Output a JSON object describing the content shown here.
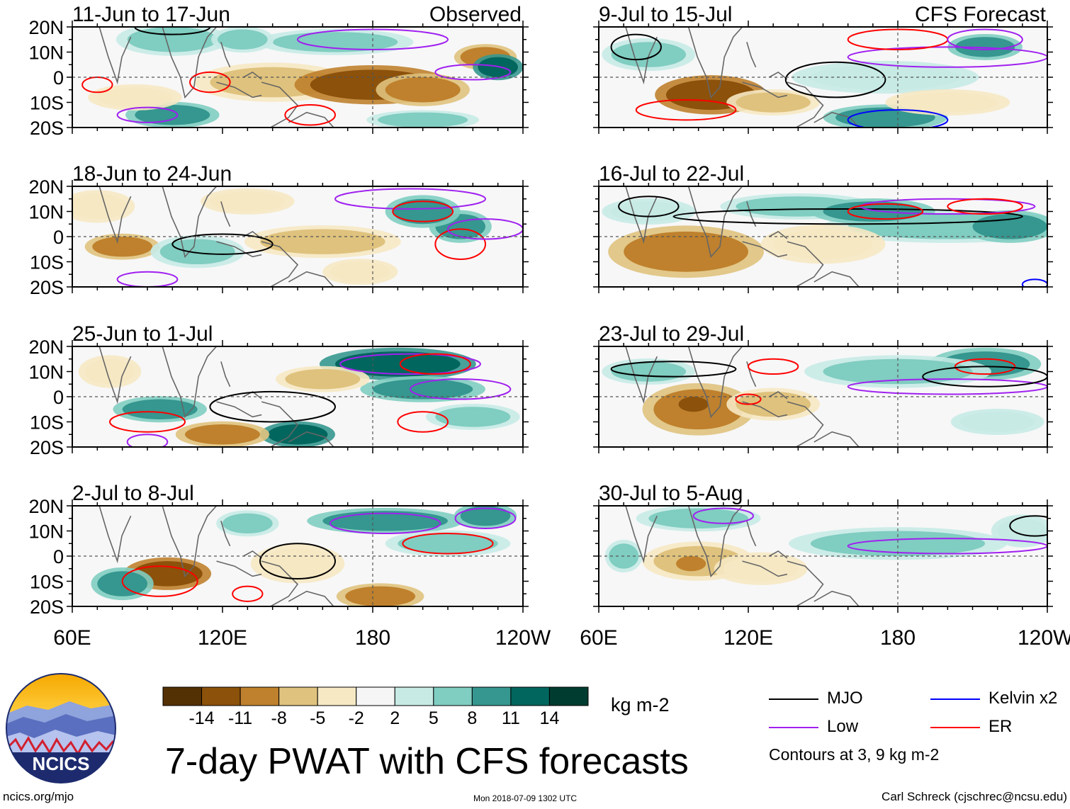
{
  "chart_data": {
    "type": "heatmap",
    "title": "7-day PWAT with CFS forecasts",
    "variable": "7-day precipitable water (PWAT) anomaly",
    "units": "kg m-2",
    "observed_label": "Observed",
    "forecast_label": "CFS Forecast",
    "lat_ticks": [
      "20N",
      "10N",
      "0",
      "10S",
      "20S"
    ],
    "lon_ticks": [
      "60E",
      "120E",
      "180",
      "120W"
    ],
    "lat_range": [
      -20,
      20
    ],
    "lon_range_deg_east": [
      60,
      240
    ],
    "panels_observed": [
      {
        "title": "11-Jun to 17-Jun"
      },
      {
        "title": "18-Jun to 24-Jun"
      },
      {
        "title": "25-Jun to 1-Jul"
      },
      {
        "title": "2-Jul to 8-Jul"
      }
    ],
    "panels_forecast": [
      {
        "title": "9-Jul to 15-Jul"
      },
      {
        "title": "16-Jul to 22-Jul"
      },
      {
        "title": "23-Jul to 29-Jul"
      },
      {
        "title": "30-Jul to 5-Aug"
      }
    ],
    "colorbar": {
      "ticks": [
        "-14",
        "-11",
        "-8",
        "-5",
        "-2",
        "2",
        "5",
        "8",
        "11",
        "14"
      ],
      "colors": [
        "#543005",
        "#8c510a",
        "#bf812d",
        "#dfc27d",
        "#f6e8c3",
        "#f5f5f5",
        "#c7eae5",
        "#80cdc1",
        "#35978f",
        "#01665e",
        "#003c30"
      ]
    },
    "contour_legend": [
      {
        "label": "MJO",
        "color": "#000000"
      },
      {
        "label": "Kelvin x2",
        "color": "#0000ff"
      },
      {
        "label": "Low",
        "color": "#a020f0"
      },
      {
        "label": "ER",
        "color": "#ff0000"
      }
    ],
    "contour_note": "Contours at 3, 9 kg m-2"
  },
  "footer": {
    "logo_text": "NCICS",
    "site": "ncics.org/mjo",
    "timestamp": "Mon 2018-07-09 1302 UTC",
    "author": "Carl Schreck (cjschrec@ncsu.edu)"
  }
}
